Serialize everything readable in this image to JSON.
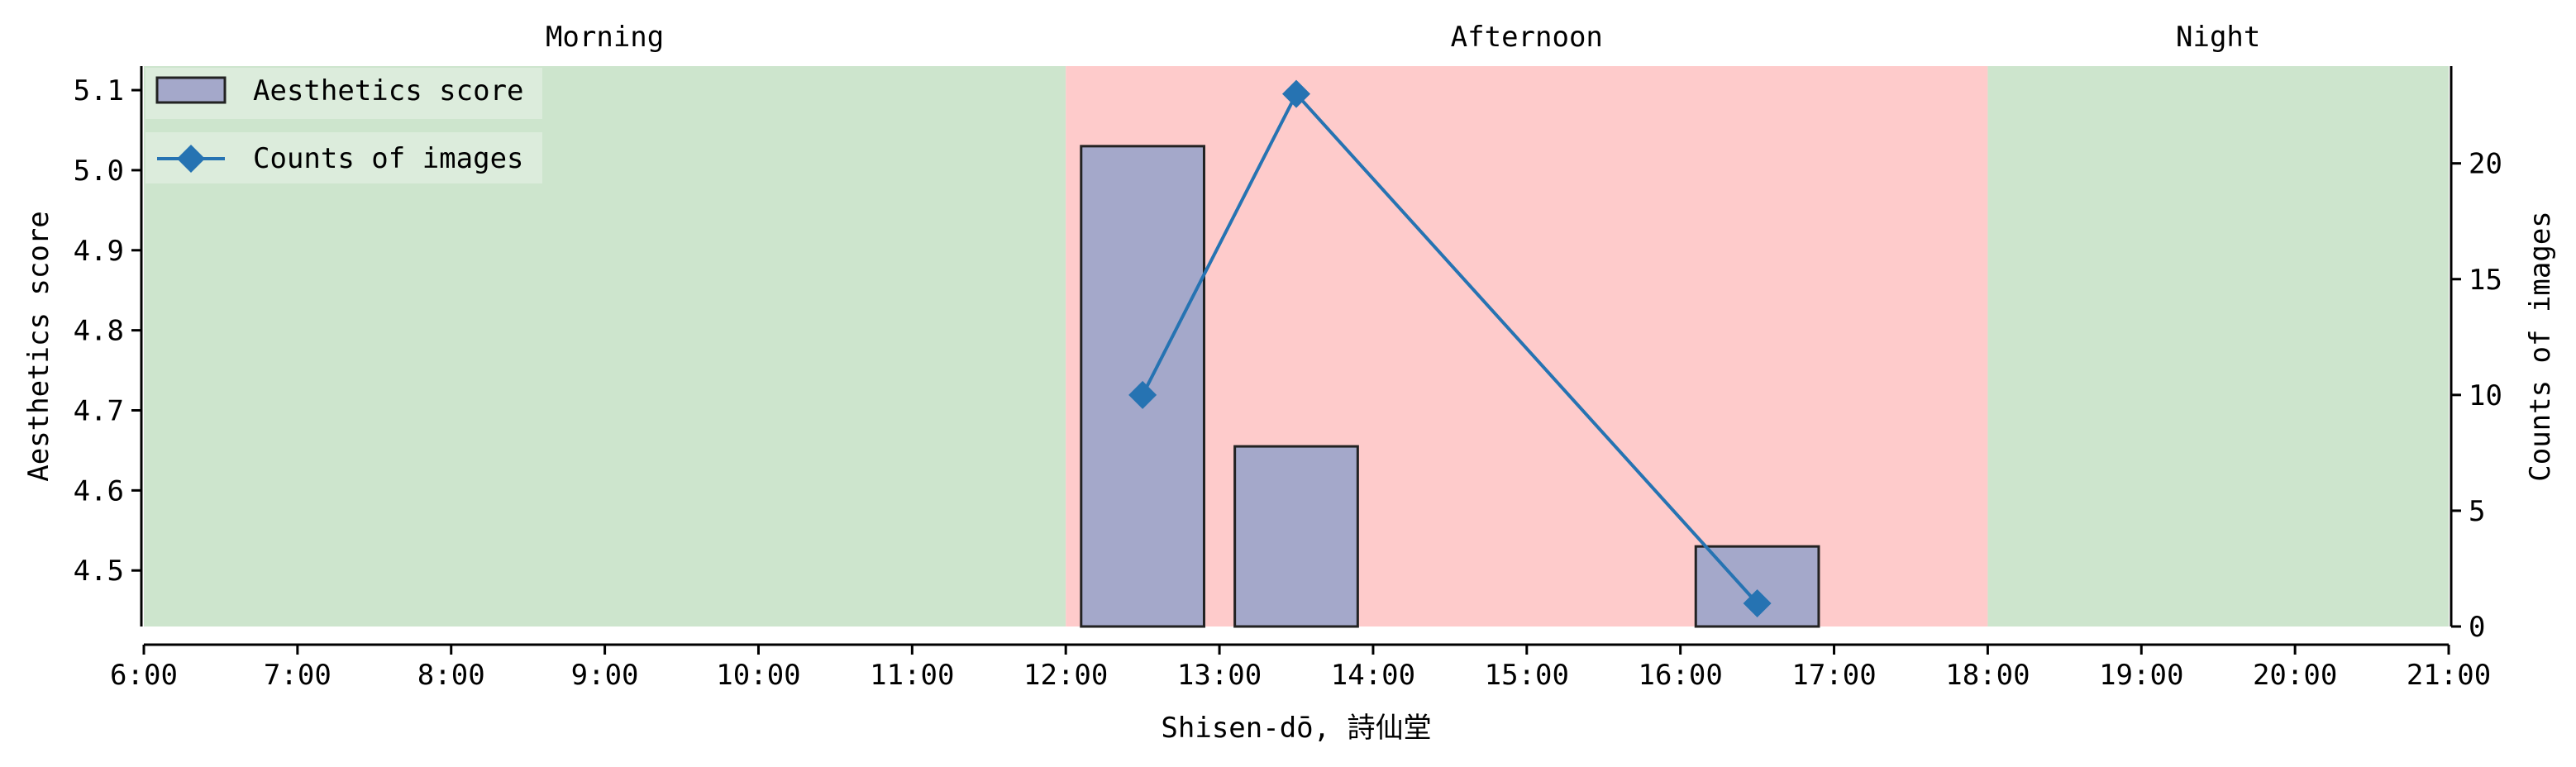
{
  "chart_data": {
    "type": "bar",
    "xlabel": "Shisen-dō, 詩仙堂",
    "ylabel_left": "Aesthetics score",
    "ylabel_right": "Counts of images",
    "x_range": [
      6,
      21
    ],
    "x_tick_labels": [
      "6:00",
      "7:00",
      "8:00",
      "9:00",
      "10:00",
      "11:00",
      "12:00",
      "13:00",
      "14:00",
      "15:00",
      "16:00",
      "17:00",
      "18:00",
      "19:00",
      "20:00",
      "21:00"
    ],
    "ylim_left": [
      4.43,
      5.13
    ],
    "left_ticks": [
      4.5,
      4.6,
      4.7,
      4.8,
      4.9,
      5.0,
      5.1
    ],
    "left_tick_labels": [
      "4.5",
      "4.6",
      "4.7",
      "4.8",
      "4.9",
      "5.0",
      "5.1"
    ],
    "ylim_right": [
      0,
      24.2
    ],
    "right_ticks": [
      0,
      5,
      10,
      15,
      20
    ],
    "right_tick_labels": [
      "0",
      "5",
      "10",
      "15",
      "20"
    ],
    "periods": [
      {
        "label": "Morning",
        "start": 6,
        "end": 12,
        "color": "#cde5cd"
      },
      {
        "label": "Afternoon",
        "start": 12,
        "end": 18,
        "color": "#fecbcb"
      },
      {
        "label": "Night",
        "start": 18,
        "end": 21,
        "color": "#cde5cd"
      }
    ],
    "bars": {
      "name": "Aesthetics score",
      "color": "#a4a8ca",
      "x_centers": [
        12.5,
        13.5,
        16.5
      ],
      "values": [
        5.03,
        4.655,
        4.53
      ]
    },
    "line": {
      "name": "Counts of images",
      "color": "#2673b2",
      "x": [
        12.5,
        13.5,
        16.5
      ],
      "values": [
        10,
        23,
        1
      ]
    },
    "legend_position": "top-left",
    "grid": false
  }
}
